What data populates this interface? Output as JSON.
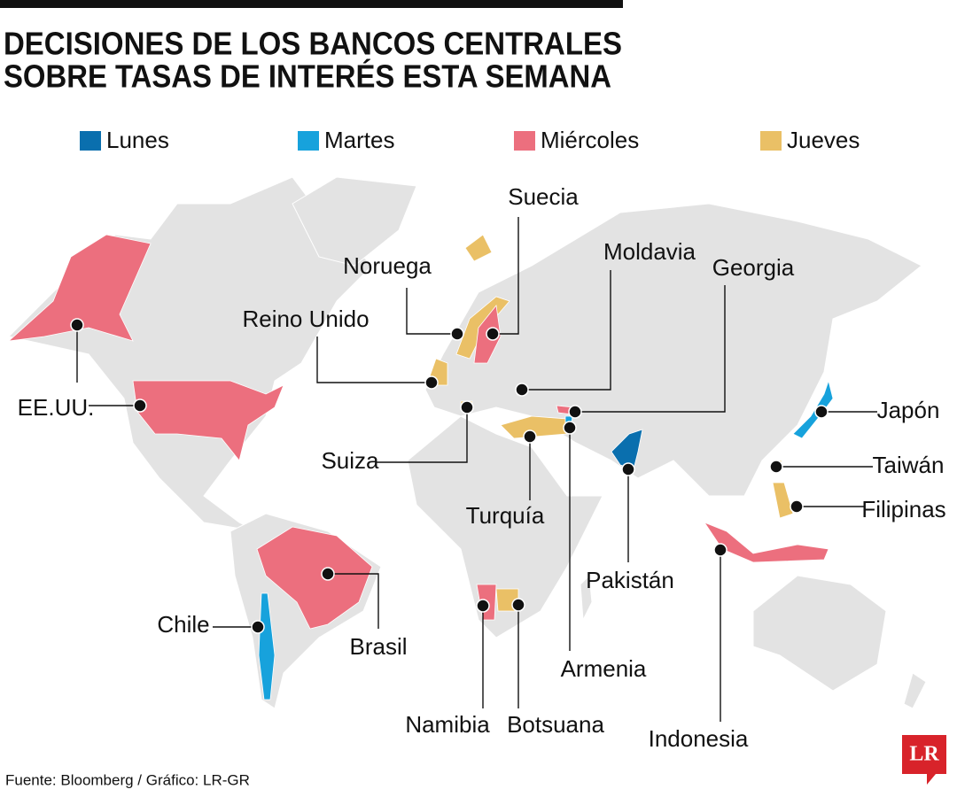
{
  "header": {
    "title_lines": [
      "DECISIONES DE LOS BANCOS CENTRALES",
      "SOBRE TASAS DE INTERÉS ESTA SEMANA"
    ]
  },
  "legend": {
    "items": [
      {
        "label": "Lunes",
        "color": "#0a6fae"
      },
      {
        "label": "Martes",
        "color": "#17a2dc"
      },
      {
        "label": "Miércoles",
        "color": "#ec6f7e"
      },
      {
        "label": "Jueves",
        "color": "#eac066"
      }
    ]
  },
  "labels": [
    "Suecia",
    "Noruega",
    "Reino Unido",
    "Moldavia",
    "Georgia",
    "EE.UU.",
    "Suiza",
    "Turquía",
    "Armenia",
    "Pakistán",
    "Japón",
    "Taiwán",
    "Filipinas",
    "Indonesia",
    "Chile",
    "Brasil",
    "Namibia",
    "Botsuana"
  ],
  "footer": {
    "source": "Fuente: Bloomberg / Gráfico: LR-GR",
    "logo": "LR"
  }
}
